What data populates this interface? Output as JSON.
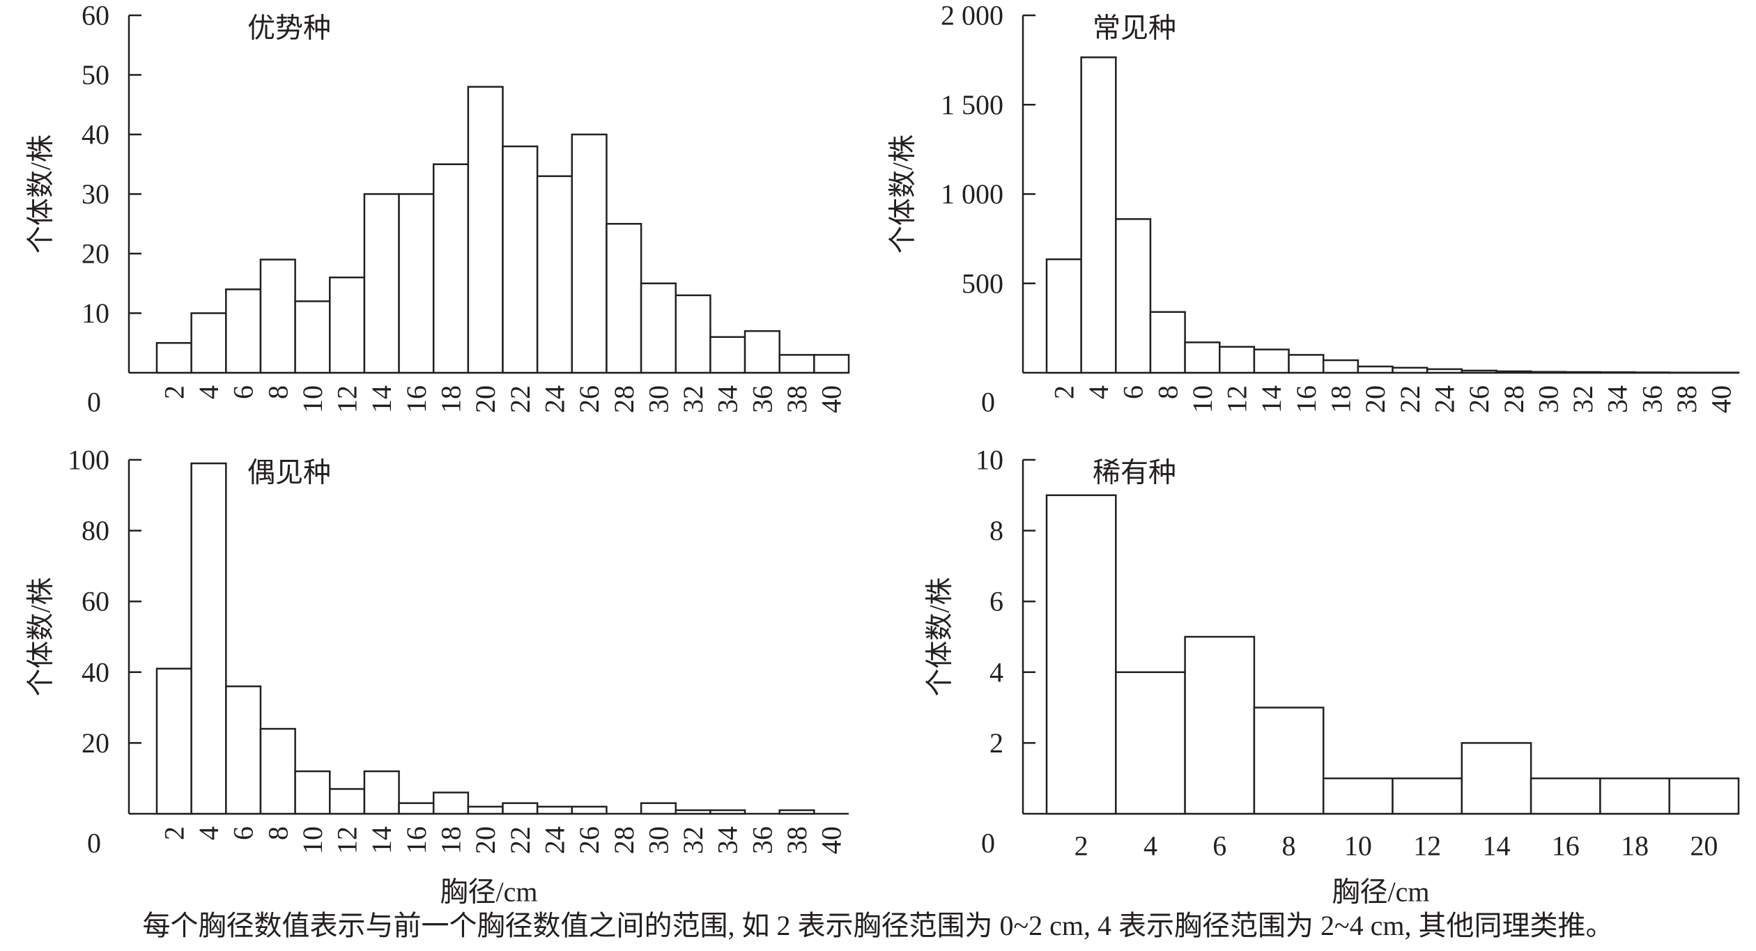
{
  "note": "每个胸径数值表示与前一个胸径数值之间的范围, 如 2 表示胸径范围为 0~2 cm, 4 表示胸径范围为 2~4 cm, 其他同理类推。",
  "chart_data": [
    {
      "type": "bar",
      "title": "优势种",
      "ylabel": "个体数/株",
      "xlabel": "",
      "y_origin_label": "0",
      "ylim": [
        0,
        60
      ],
      "yticks": [
        {
          "v": 10,
          "t": "10"
        },
        {
          "v": 20,
          "t": "20"
        },
        {
          "v": 30,
          "t": "30"
        },
        {
          "v": 40,
          "t": "40"
        },
        {
          "v": 50,
          "t": "50"
        },
        {
          "v": 60,
          "t": "60"
        }
      ],
      "categories": [
        "2",
        "4",
        "6",
        "8",
        "10",
        "12",
        "14",
        "16",
        "18",
        "20",
        "22",
        "24",
        "26",
        "28",
        "30",
        "32",
        "34",
        "36",
        "38",
        "40"
      ],
      "values": [
        5,
        10,
        14,
        19,
        12,
        16,
        30,
        30,
        35,
        48,
        38,
        33,
        40,
        25,
        15,
        13,
        6,
        7,
        3,
        3
      ],
      "rotated_ticks": true
    },
    {
      "type": "bar",
      "title": "常见种",
      "ylabel": "个体数/株",
      "xlabel": "",
      "y_origin_label": "0",
      "ylim": [
        0,
        2000
      ],
      "yticks": [
        {
          "v": 500,
          "t": "500"
        },
        {
          "v": 1000,
          "t": "1 000"
        },
        {
          "v": 1500,
          "t": "1 500"
        },
        {
          "v": 2000,
          "t": "2 000"
        }
      ],
      "categories": [
        "2",
        "4",
        "6",
        "8",
        "10",
        "12",
        "14",
        "16",
        "18",
        "20",
        "22",
        "24",
        "26",
        "28",
        "30",
        "32",
        "34",
        "36",
        "38",
        "40"
      ],
      "values": [
        635,
        1765,
        860,
        340,
        170,
        145,
        130,
        100,
        70,
        35,
        28,
        20,
        12,
        8,
        5,
        4,
        3,
        2,
        1,
        1
      ],
      "rotated_ticks": true
    },
    {
      "type": "bar",
      "title": "偶见种",
      "ylabel": "个体数/株",
      "xlabel": "胸径/cm",
      "y_origin_label": "0",
      "ylim": [
        0,
        100
      ],
      "yticks": [
        {
          "v": 20,
          "t": "20"
        },
        {
          "v": 40,
          "t": "40"
        },
        {
          "v": 60,
          "t": "60"
        },
        {
          "v": 80,
          "t": "80"
        },
        {
          "v": 100,
          "t": "100"
        }
      ],
      "categories": [
        "2",
        "4",
        "6",
        "8",
        "10",
        "12",
        "14",
        "16",
        "18",
        "20",
        "22",
        "24",
        "26",
        "28",
        "30",
        "32",
        "34",
        "36",
        "38",
        "40"
      ],
      "values": [
        41,
        99,
        36,
        24,
        12,
        7,
        12,
        3,
        6,
        2,
        3,
        2,
        2,
        0,
        3,
        1,
        1,
        0,
        1,
        0
      ],
      "rotated_ticks": true
    },
    {
      "type": "bar",
      "title": "稀有种",
      "ylabel": "个体数/株",
      "xlabel": "胸径/cm",
      "y_origin_label": "0",
      "ylim": [
        0,
        10
      ],
      "yticks": [
        {
          "v": 2,
          "t": "2"
        },
        {
          "v": 4,
          "t": "4"
        },
        {
          "v": 6,
          "t": "6"
        },
        {
          "v": 8,
          "t": "8"
        },
        {
          "v": 10,
          "t": "10"
        }
      ],
      "categories": [
        "2",
        "4",
        "6",
        "8",
        "10",
        "12",
        "14",
        "16",
        "18",
        "20"
      ],
      "values": [
        9,
        4,
        5,
        3,
        1,
        1,
        2,
        1,
        1,
        1
      ],
      "rotated_ticks": false
    }
  ]
}
